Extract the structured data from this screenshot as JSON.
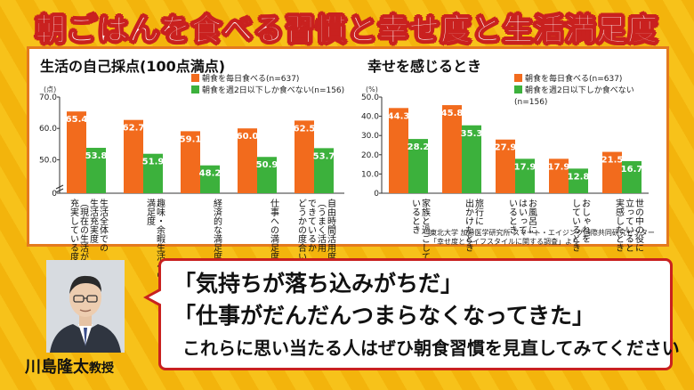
{
  "headline": "朝ごはんを食べる習慣と幸せ度と生活満足度",
  "colors": {
    "series1": "#f26b1d",
    "series2": "#3cb13c"
  },
  "left_chart": {
    "title": "生活の自己採点(100点満点)",
    "unit": "(点)",
    "legend": [
      "朝食を毎日食べる(n=637)",
      "朝食を週2日以下しか食べない(n=156)"
    ]
  },
  "right_chart": {
    "title": "幸せを感じるとき",
    "unit": "(%)",
    "legend": [
      "朝食を毎日食べる(n=637)",
      "朝食を週2日以下しか食べない(n=156)"
    ]
  },
  "chart_data": [
    {
      "type": "bar",
      "title": "生活の自己採点(100点満点)",
      "ylabel": "(点)",
      "categories": [
        [
          "生活全体での",
          "生活充実度",
          "（現在の生活が",
          "充実している度合い）"
        ],
        [
          "趣味・余暇生活への",
          "満足度"
        ],
        [
          "経済的な満足度"
        ],
        [
          "仕事への満足度"
        ],
        [
          "自由時間活用度",
          "（うまく活用",
          "できているか",
          "どうかの度合い）"
        ]
      ],
      "series": [
        {
          "name": "朝食を毎日食べる(n=637)",
          "values": [
            65.4,
            62.7,
            59.1,
            60.0,
            62.5
          ]
        },
        {
          "name": "朝食を週2日以下しか食べない(n=156)",
          "values": [
            53.8,
            51.9,
            48.2,
            50.9,
            53.7
          ]
        }
      ],
      "yticks": [
        "70.0",
        "60.0",
        "50.0",
        "0"
      ],
      "ylim": [
        45,
        70
      ],
      "axis_break": true
    },
    {
      "type": "bar",
      "title": "幸せを感じるとき",
      "ylabel": "(%)",
      "categories": [
        [
          "家族と過ごして",
          "いるとき"
        ],
        [
          "旅行に",
          "出かけたとき"
        ],
        [
          "お風呂に",
          "はいって",
          "いるとき"
        ],
        [
          "おしゃれを",
          "しているとき"
        ],
        [
          "世の中の役に",
          "立っていると",
          "実感したとき"
        ]
      ],
      "series": [
        {
          "name": "朝食を毎日食べる(n=637)",
          "values": [
            44.3,
            45.8,
            27.9,
            17.9,
            21.5
          ]
        },
        {
          "name": "朝食を週2日以下しか食べない(n=156)",
          "values": [
            28.2,
            35.3,
            17.9,
            12.8,
            16.7
          ]
        }
      ],
      "yticks": [
        "50.0",
        "40.0",
        "30.0",
        "20.0",
        "10.0",
        "0"
      ],
      "ylim": [
        0,
        50
      ]
    }
  ],
  "source": [
    "東北大学 加齢医学研究所 スマート・エイジング国際共同研究センター",
    "「幸せ度とライフスタイルに関する調査」より"
  ],
  "quotes": [
    "「気持ちが落ち込みがちだ」",
    "「仕事がだんだんつまらなくなってきた」"
  ],
  "message": "これらに思い当たる人はぜひ朝食習慣を見直してみてください",
  "person": {
    "name": "川島隆太",
    "title": "教授"
  }
}
